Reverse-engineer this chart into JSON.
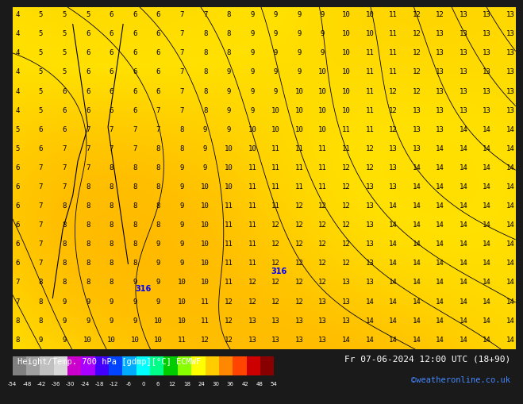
{
  "title_left": "Height/Temp. 700 hPa [gdmp][°C] ECMWF",
  "title_right": "Fr 07-06-2024 12:00 UTC (18+90)",
  "credit": "©weatheronline.co.uk",
  "colorbar_ticks": [
    -54,
    -48,
    -42,
    -36,
    -30,
    -24,
    -18,
    -12,
    -6,
    0,
    6,
    12,
    18,
    24,
    30,
    36,
    42,
    48,
    54
  ],
  "bg_color": "#FFD700",
  "bottom_bar_color": "#2a2a2a",
  "colorbar_colors": [
    "#808080",
    "#a0a0a0",
    "#c0c0c0",
    "#d8d8d8",
    "#cc00cc",
    "#aa00ff",
    "#4400ff",
    "#0044ff",
    "#00aaff",
    "#00ffff",
    "#00ff88",
    "#00cc00",
    "#88ff00",
    "#ffff00",
    "#ffcc00",
    "#ff8800",
    "#ff4400",
    "#cc0000",
    "#880000"
  ],
  "map_bg": "#FFD700",
  "contour_color": "#000000",
  "label_color": "#000000",
  "special_label_color": "#0000FF",
  "green_bar_color": "#00AA00",
  "bottom_bg": "#1a1a1a",
  "bottom_text_color": "#FFFFFF",
  "credit_color": "#4488FF"
}
